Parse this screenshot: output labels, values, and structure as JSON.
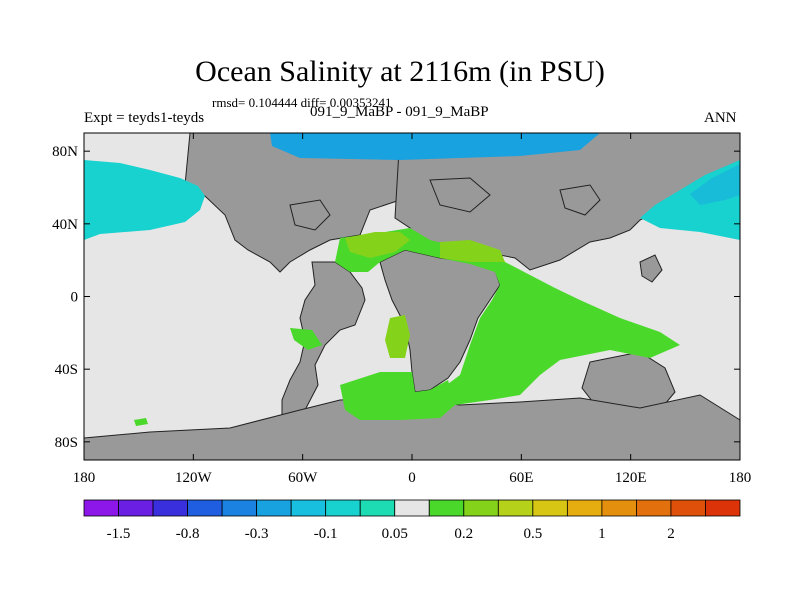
{
  "chart_data": {
    "type": "heatmap",
    "title": "Ocean Salinity at 2116m (in PSU)",
    "stats_text": "rmsd= 0.104444 diff= 0.00353241",
    "left_label": "Expt = teyds1-teyds",
    "center_label": "091_9_MaBP - 091_9_MaBP",
    "right_label": "ANN",
    "xlim": [
      -180,
      180
    ],
    "ylim": [
      -90,
      90
    ],
    "x_ticks": [
      {
        "value": -180,
        "label": "180"
      },
      {
        "value": -120,
        "label": "120W"
      },
      {
        "value": -60,
        "label": "60W"
      },
      {
        "value": 0,
        "label": "0"
      },
      {
        "value": 60,
        "label": "60E"
      },
      {
        "value": 120,
        "label": "120E"
      },
      {
        "value": 180,
        "label": "180"
      }
    ],
    "y_ticks": [
      {
        "value": 80,
        "label": "80N"
      },
      {
        "value": 40,
        "label": "40N"
      },
      {
        "value": 0,
        "label": "0"
      },
      {
        "value": -40,
        "label": "40S"
      },
      {
        "value": -80,
        "label": "80S"
      }
    ],
    "colorbar": {
      "colors": [
        "#8c17e8",
        "#6a1fe2",
        "#3a2fdc",
        "#1f5ee0",
        "#1b82e2",
        "#19a2e0",
        "#18bfdf",
        "#18d2cf",
        "#1ddcb4",
        "#e6e6e6",
        "#4ad92a",
        "#84d31a",
        "#b5d11a",
        "#d7c614",
        "#e6ad10",
        "#e58f0e",
        "#e2700c",
        "#df500a",
        "#dc3408"
      ],
      "labels": [
        {
          "after_box": 1,
          "label": "-1.5"
        },
        {
          "after_box": 3,
          "label": "-0.8"
        },
        {
          "after_box": 5,
          "label": "-0.3"
        },
        {
          "after_box": 7,
          "label": "-0.1"
        },
        {
          "after_box": 9,
          "label": "0.05"
        },
        {
          "after_box": 11,
          "label": "0.2"
        },
        {
          "after_box": 13,
          "label": "0.5"
        },
        {
          "after_box": 15,
          "label": "1"
        },
        {
          "after_box": 17,
          "label": "2"
        }
      ]
    },
    "regions": [
      {
        "name": "near-zero-ocean",
        "value_range": "-0.05 to 0.05",
        "color": "#e6e6e6"
      },
      {
        "name": "land",
        "color": "#999999"
      },
      {
        "name": "arctic-negative-anomaly",
        "value_range": "-0.8 to -0.3",
        "color": "#19a2e0"
      },
      {
        "name": "north-pacific-negative-anomaly",
        "value_range": "-0.3 to -0.1",
        "color": "#18d2cf"
      },
      {
        "name": "atlantic-indian-positive-anomaly",
        "value_range": "0.05 to 0.2",
        "color": "#4ad92a"
      },
      {
        "name": "tethys-positive-anomaly",
        "value_range": "0.2 to 0.5",
        "color": "#84d31a"
      }
    ]
  }
}
